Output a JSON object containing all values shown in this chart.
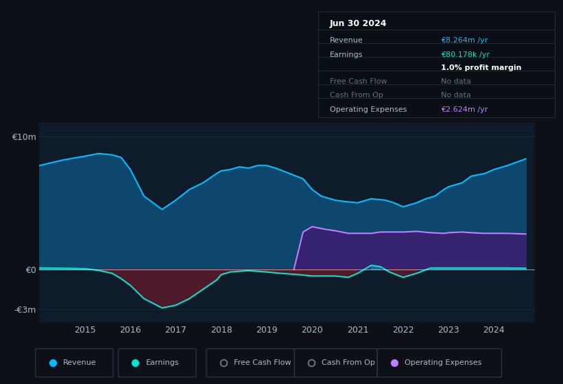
{
  "bg_color": "#0d1117",
  "plot_bg_color": "#0d1b2a",
  "grid_color": "#1e3a5f",
  "title_box": {
    "header": "Jun 30 2024",
    "rows": [
      {
        "label": "Revenue",
        "value": "€8.264m /yr",
        "value_color": "#00bfff",
        "label_color": "#aabbcc"
      },
      {
        "label": "Earnings",
        "value": "€80.178k /yr",
        "value_color": "#00e5cc",
        "label_color": "#aabbcc"
      },
      {
        "label": "",
        "value": "1.0% profit margin",
        "value_color": "#ffffff",
        "label_color": "#aabbcc"
      },
      {
        "label": "Free Cash Flow",
        "value": "No data",
        "value_color": "#607080",
        "label_color": "#607080"
      },
      {
        "label": "Cash From Op",
        "value": "No data",
        "value_color": "#607080",
        "label_color": "#607080"
      },
      {
        "label": "Operating Expenses",
        "value": "€2.624m /yr",
        "value_color": "#bf7fff",
        "label_color": "#aabbcc"
      }
    ]
  },
  "ylim": [
    -4000000,
    11000000
  ],
  "xlim": [
    2014.0,
    2024.9
  ],
  "xticks": [
    2015,
    2016,
    2017,
    2018,
    2019,
    2020,
    2021,
    2022,
    2023,
    2024
  ],
  "revenue_x": [
    2014.0,
    2014.5,
    2015.0,
    2015.3,
    2015.6,
    2015.8,
    2016.0,
    2016.3,
    2016.7,
    2017.0,
    2017.3,
    2017.6,
    2017.9,
    2018.0,
    2018.2,
    2018.4,
    2018.6,
    2018.8,
    2019.0,
    2019.2,
    2019.5,
    2019.8,
    2020.0,
    2020.2,
    2020.5,
    2020.7,
    2021.0,
    2021.3,
    2021.6,
    2021.8,
    2022.0,
    2022.3,
    2022.5,
    2022.7,
    2022.9,
    2023.0,
    2023.3,
    2023.5,
    2023.8,
    2024.0,
    2024.3,
    2024.7
  ],
  "revenue_y": [
    7800000,
    8200000,
    8500000,
    8700000,
    8600000,
    8400000,
    7500000,
    5500000,
    4500000,
    5200000,
    6000000,
    6500000,
    7200000,
    7400000,
    7500000,
    7700000,
    7600000,
    7800000,
    7800000,
    7600000,
    7200000,
    6800000,
    6000000,
    5500000,
    5200000,
    5100000,
    5000000,
    5300000,
    5200000,
    5000000,
    4700000,
    5000000,
    5300000,
    5500000,
    6000000,
    6200000,
    6500000,
    7000000,
    7200000,
    7500000,
    7800000,
    8300000
  ],
  "earnings_x": [
    2014.0,
    2014.5,
    2015.0,
    2015.3,
    2015.6,
    2015.8,
    2016.0,
    2016.3,
    2016.7,
    2017.0,
    2017.3,
    2017.6,
    2017.9,
    2018.0,
    2018.2,
    2018.6,
    2019.0,
    2019.3,
    2019.7,
    2020.0,
    2020.3,
    2020.5,
    2020.8,
    2021.0,
    2021.3,
    2021.5,
    2021.7,
    2022.0,
    2022.3,
    2022.6,
    2023.0,
    2023.3,
    2023.7,
    2024.0,
    2024.3,
    2024.7
  ],
  "earnings_y": [
    100000,
    80000,
    50000,
    -80000,
    -300000,
    -700000,
    -1200000,
    -2200000,
    -2900000,
    -2700000,
    -2200000,
    -1500000,
    -800000,
    -400000,
    -200000,
    -100000,
    -200000,
    -300000,
    -400000,
    -500000,
    -500000,
    -500000,
    -600000,
    -300000,
    300000,
    200000,
    -200000,
    -600000,
    -300000,
    100000,
    100000,
    100000,
    100000,
    100000,
    100000,
    80000
  ],
  "opex_x": [
    2019.6,
    2019.8,
    2020.0,
    2020.3,
    2020.5,
    2020.8,
    2021.0,
    2021.3,
    2021.5,
    2021.8,
    2022.0,
    2022.3,
    2022.6,
    2022.9,
    2023.0,
    2023.3,
    2023.5,
    2023.8,
    2024.0,
    2024.3,
    2024.7
  ],
  "opex_y": [
    0,
    2800000,
    3200000,
    3000000,
    2900000,
    2700000,
    2700000,
    2700000,
    2800000,
    2800000,
    2800000,
    2850000,
    2750000,
    2700000,
    2750000,
    2800000,
    2750000,
    2700000,
    2700000,
    2700000,
    2650000
  ],
  "revenue_color": "#00bfff",
  "revenue_fill": "#0d4f7a",
  "earnings_color": "#00e5cc",
  "earnings_fill_neg": "#5a1a2a",
  "opex_color": "#bf7fff",
  "opex_fill": "#3a2070",
  "legend": [
    {
      "label": "Revenue",
      "color": "#00bfff",
      "type": "circle"
    },
    {
      "label": "Earnings",
      "color": "#00e5cc",
      "type": "circle"
    },
    {
      "label": "Free Cash Flow",
      "color": "#607080",
      "type": "circle_empty"
    },
    {
      "label": "Cash From Op",
      "color": "#607080",
      "type": "circle_empty"
    },
    {
      "label": "Operating Expenses",
      "color": "#bf7fff",
      "type": "circle"
    }
  ]
}
